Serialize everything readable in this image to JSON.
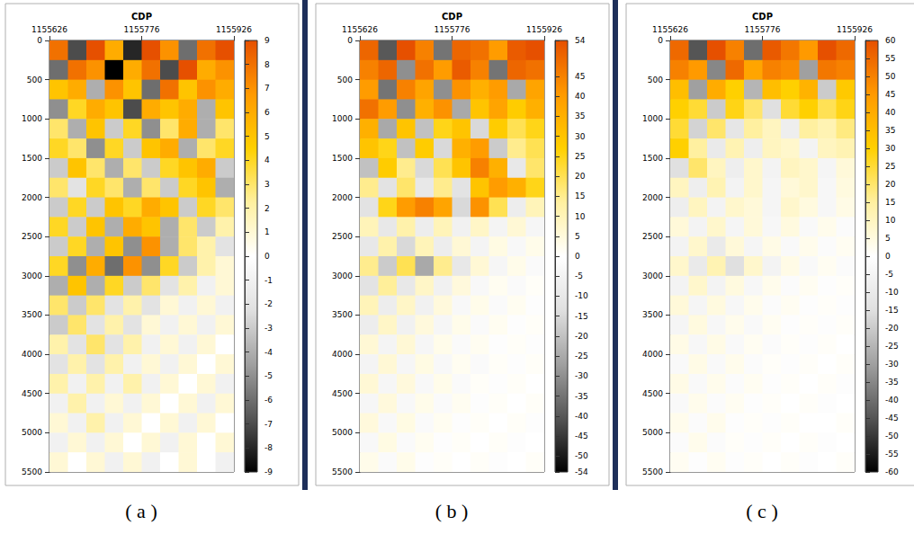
{
  "chart_data": [
    {
      "type": "heatmap",
      "title": "( a )",
      "x_label": "CDP",
      "xlim": [
        1155626,
        1155926
      ],
      "xticks": [
        1155626,
        1155776,
        1155926
      ],
      "ylim": [
        0,
        5500
      ],
      "yticks": [
        0,
        500,
        1000,
        1500,
        2000,
        2500,
        3000,
        3500,
        4000,
        4500,
        5000,
        5500
      ],
      "x": [
        1155641,
        1155671,
        1155701,
        1155731,
        1155761,
        1155791,
        1155821,
        1155851,
        1155881,
        1155911
      ],
      "y": [
        125,
        375,
        625,
        875,
        1125,
        1375,
        1625,
        1875,
        2125,
        2375,
        2625,
        2875,
        3125,
        3375,
        3625,
        3875,
        4125,
        4375,
        4625,
        4875,
        5125,
        5375
      ],
      "values": [
        [
          8,
          -7,
          9,
          6,
          -8,
          9,
          7,
          -6,
          8,
          9
        ],
        [
          -6,
          8,
          7,
          -9,
          6,
          8,
          -7,
          9,
          6,
          7
        ],
        [
          5,
          6,
          -4,
          7,
          5,
          -6,
          8,
          5,
          7,
          6
        ],
        [
          -5,
          4,
          6,
          5,
          -7,
          6,
          5,
          6,
          -4,
          5
        ],
        [
          3,
          -4,
          5,
          -3,
          4,
          -5,
          3,
          6,
          -4,
          3
        ],
        [
          4,
          3,
          -5,
          4,
          -3,
          5,
          6,
          -4,
          3,
          4
        ],
        [
          -3,
          5,
          3,
          -4,
          3,
          -3,
          4,
          5,
          6,
          -3
        ],
        [
          3,
          -2,
          4,
          3,
          -4,
          3,
          -3,
          4,
          5,
          -4
        ],
        [
          -3,
          4,
          -3,
          5,
          4,
          6,
          5,
          -3,
          4,
          3
        ],
        [
          4,
          -3,
          5,
          -4,
          6,
          5,
          -4,
          3,
          -3,
          2
        ],
        [
          -3,
          4,
          -4,
          5,
          -5,
          7,
          -4,
          3,
          2,
          -2
        ],
        [
          4,
          -5,
          6,
          -6,
          7,
          -5,
          4,
          -3,
          2,
          1
        ],
        [
          -4,
          5,
          -4,
          4,
          -3,
          3,
          -2,
          2,
          -1,
          1
        ],
        [
          3,
          -3,
          3,
          -2,
          2,
          -2,
          1,
          -1,
          1,
          -1
        ],
        [
          -3,
          3,
          -2,
          2,
          -2,
          1,
          -1,
          1,
          -1,
          1
        ],
        [
          2,
          -2,
          3,
          -2,
          2,
          -1,
          1,
          -1,
          1,
          0
        ],
        [
          -2,
          2,
          -2,
          2,
          -1,
          1,
          -1,
          1,
          0,
          1
        ],
        [
          2,
          -1,
          2,
          -1,
          2,
          -1,
          1,
          0,
          1,
          -1
        ],
        [
          -1,
          2,
          -1,
          1,
          -1,
          1,
          0,
          1,
          -1,
          1
        ],
        [
          1,
          -1,
          2,
          -1,
          1,
          0,
          1,
          -1,
          1,
          0
        ],
        [
          -1,
          1,
          -1,
          1,
          0,
          1,
          -1,
          1,
          0,
          1
        ],
        [
          1,
          0,
          1,
          -1,
          1,
          -1,
          0,
          1,
          0,
          -1
        ]
      ],
      "color_range": [
        -9,
        9
      ],
      "color_ticks": [
        -9,
        -8,
        -7,
        -6,
        -5,
        -4,
        -3,
        -2,
        -1,
        0,
        1,
        2,
        3,
        4,
        5,
        6,
        7,
        8,
        9
      ]
    },
    {
      "type": "heatmap",
      "title": "( b )",
      "x_label": "CDP",
      "xlim": [
        1155626,
        1155926
      ],
      "xticks": [
        1155626,
        1155776,
        1155926
      ],
      "ylim": [
        0,
        5500
      ],
      "yticks": [
        0,
        500,
        1000,
        1500,
        2000,
        2500,
        3000,
        3500,
        4000,
        4500,
        5000,
        5500
      ],
      "x": [
        1155641,
        1155671,
        1155701,
        1155731,
        1155761,
        1155791,
        1155821,
        1155851,
        1155881,
        1155911
      ],
      "y": [
        125,
        375,
        625,
        875,
        1125,
        1375,
        1625,
        1875,
        2125,
        2375,
        2625,
        2875,
        3125,
        3375,
        3625,
        3875,
        4125,
        4375,
        4625,
        4875,
        5125,
        5375
      ],
      "values": [
        [
          50,
          -40,
          54,
          45,
          -35,
          50,
          48,
          40,
          52,
          54
        ],
        [
          45,
          50,
          -30,
          48,
          40,
          52,
          45,
          -35,
          50,
          48
        ],
        [
          40,
          -35,
          45,
          38,
          -30,
          42,
          35,
          40,
          -25,
          38
        ],
        [
          48,
          40,
          -30,
          35,
          42,
          -25,
          30,
          38,
          28,
          35
        ],
        [
          35,
          -25,
          30,
          -20,
          25,
          30,
          -15,
          28,
          20,
          25
        ],
        [
          30,
          25,
          -20,
          28,
          -15,
          35,
          40,
          -18,
          15,
          20
        ],
        [
          -20,
          28,
          15,
          -15,
          20,
          30,
          45,
          35,
          -10,
          18
        ],
        [
          15,
          -12,
          18,
          -10,
          15,
          -12,
          30,
          40,
          35,
          25
        ],
        [
          -12,
          25,
          40,
          45,
          38,
          -15,
          42,
          20,
          -8,
          10
        ],
        [
          10,
          -10,
          12,
          -8,
          10,
          -6,
          8,
          -5,
          6,
          -4
        ],
        [
          -10,
          12,
          -15,
          10,
          -8,
          6,
          -5,
          4,
          -3,
          3
        ],
        [
          15,
          -18,
          20,
          -25,
          15,
          -10,
          6,
          -4,
          3,
          -2
        ],
        [
          -12,
          14,
          -10,
          8,
          -6,
          5,
          -3,
          2,
          -2,
          1
        ],
        [
          10,
          -8,
          8,
          -6,
          5,
          -3,
          3,
          -2,
          2,
          -1
        ],
        [
          -8,
          8,
          -6,
          5,
          -4,
          3,
          -2,
          2,
          -1,
          1
        ],
        [
          6,
          -5,
          6,
          -4,
          3,
          -2,
          2,
          -1,
          1,
          -1
        ],
        [
          -5,
          6,
          -4,
          4,
          -3,
          2,
          -2,
          1,
          -1,
          1
        ],
        [
          6,
          -4,
          5,
          -3,
          3,
          -2,
          1,
          -1,
          1,
          0
        ],
        [
          -4,
          5,
          -3,
          3,
          -2,
          2,
          -1,
          1,
          0,
          1
        ],
        [
          5,
          -3,
          4,
          -2,
          2,
          -1,
          1,
          0,
          1,
          -1
        ],
        [
          -3,
          4,
          -2,
          2,
          -1,
          1,
          0,
          1,
          -1,
          0
        ],
        [
          3,
          -2,
          3,
          -1,
          1,
          0,
          1,
          -1,
          0,
          1
        ]
      ],
      "color_range": [
        -54,
        54
      ],
      "color_ticks": [
        -54,
        -50,
        -45,
        -40,
        -35,
        -30,
        -25,
        -20,
        -15,
        -10,
        -5,
        0,
        5,
        10,
        15,
        20,
        25,
        30,
        35,
        40,
        45,
        54
      ]
    },
    {
      "type": "heatmap",
      "title": "( c )",
      "x_label": "CDP",
      "xlim": [
        1155626,
        1155926
      ],
      "xticks": [
        1155626,
        1155776,
        1155926
      ],
      "ylim": [
        0,
        5500
      ],
      "yticks": [
        0,
        500,
        1000,
        1500,
        2000,
        2500,
        3000,
        3500,
        4000,
        4500,
        5000,
        5500
      ],
      "x": [
        1155641,
        1155671,
        1155701,
        1155731,
        1155761,
        1155791,
        1155821,
        1155851,
        1155881,
        1155911
      ],
      "y": [
        125,
        375,
        625,
        875,
        1125,
        1375,
        1625,
        1875,
        2125,
        2375,
        2625,
        2875,
        3125,
        3375,
        3625,
        3875,
        4125,
        4375,
        4625,
        4875,
        5125,
        5375
      ],
      "values": [
        [
          55,
          -45,
          60,
          50,
          -40,
          58,
          52,
          45,
          60,
          55
        ],
        [
          50,
          45,
          -35,
          55,
          42,
          50,
          48,
          -30,
          52,
          50
        ],
        [
          35,
          -30,
          40,
          30,
          -25,
          35,
          30,
          38,
          -20,
          32
        ],
        [
          30,
          25,
          -20,
          28,
          20,
          -15,
          25,
          30,
          22,
          28
        ],
        [
          25,
          -18,
          20,
          -12,
          15,
          10,
          -8,
          15,
          12,
          18
        ],
        [
          30,
          15,
          -10,
          12,
          -8,
          10,
          8,
          -6,
          10,
          12
        ],
        [
          -15,
          20,
          10,
          -8,
          8,
          -6,
          10,
          8,
          -5,
          6
        ],
        [
          10,
          -8,
          12,
          -6,
          8,
          -5,
          6,
          8,
          -4,
          5
        ],
        [
          -8,
          10,
          -6,
          8,
          6,
          -5,
          8,
          5,
          -4,
          4
        ],
        [
          6,
          -6,
          8,
          -5,
          6,
          -4,
          5,
          -3,
          3,
          -2
        ],
        [
          -6,
          8,
          -10,
          6,
          -5,
          4,
          -3,
          3,
          -2,
          2
        ],
        [
          8,
          -10,
          12,
          -15,
          8,
          -6,
          4,
          -3,
          2,
          -2
        ],
        [
          -6,
          8,
          -6,
          5,
          -4,
          3,
          -2,
          2,
          -1,
          1
        ],
        [
          6,
          -5,
          5,
          -4,
          3,
          -2,
          2,
          -1,
          1,
          -1
        ],
        [
          -5,
          5,
          -4,
          3,
          -3,
          2,
          -1,
          1,
          -1,
          1
        ],
        [
          4,
          -4,
          4,
          -3,
          2,
          -2,
          1,
          -1,
          1,
          0
        ],
        [
          -3,
          4,
          -3,
          3,
          -2,
          1,
          -1,
          1,
          0,
          1
        ],
        [
          4,
          -3,
          3,
          -2,
          2,
          -1,
          1,
          0,
          1,
          -1
        ],
        [
          -3,
          3,
          -2,
          2,
          -1,
          1,
          0,
          1,
          -1,
          0
        ],
        [
          3,
          -2,
          3,
          -1,
          1,
          -1,
          1,
          0,
          0,
          1
        ],
        [
          -2,
          3,
          -2,
          1,
          -1,
          1,
          0,
          1,
          -1,
          0
        ],
        [
          2,
          -1,
          2,
          -1,
          1,
          0,
          1,
          -1,
          0,
          1
        ]
      ],
      "color_range": [
        -60,
        60
      ],
      "color_ticks": [
        -60,
        -55,
        -50,
        -45,
        -40,
        -35,
        -30,
        -25,
        -20,
        -15,
        -10,
        -5,
        0,
        5,
        10,
        15,
        20,
        25,
        30,
        35,
        40,
        45,
        50,
        55,
        60
      ]
    }
  ]
}
